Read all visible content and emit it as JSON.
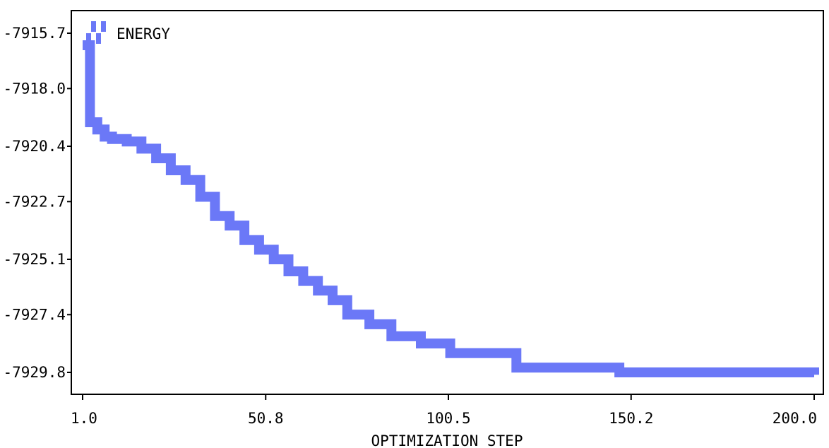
{
  "chart_data": {
    "type": "line",
    "title": "",
    "xlabel": "OPTIMIZATION STEP",
    "ylabel": "",
    "xlim": [
      1.0,
      200.0
    ],
    "ylim": [
      -7929.8,
      -7915.7
    ],
    "x_ticks": [
      "1.0",
      "50.8",
      "100.5",
      "150.2",
      "200.0"
    ],
    "x_tick_values": [
      1.0,
      50.8,
      100.5,
      150.2,
      200.0
    ],
    "y_ticks": [
      "-7915.7",
      "-7918.0",
      "-7920.4",
      "-7922.7",
      "-7925.1",
      "-7927.4",
      "-7929.8"
    ],
    "y_tick_values": [
      -7915.7,
      -7918.0,
      -7920.4,
      -7922.7,
      -7925.1,
      -7927.4,
      -7929.8
    ],
    "legend": {
      "position": "top-left",
      "entries": [
        "ENERGY"
      ]
    },
    "grid": false,
    "color": "#6b78f7",
    "series": [
      {
        "name": "ENERGY",
        "x": [
          1,
          3,
          5,
          7,
          9,
          11,
          13,
          17,
          21,
          25,
          29,
          33,
          37,
          41,
          45,
          49,
          53,
          57,
          61,
          65,
          69,
          73,
          79,
          85,
          93,
          101,
          119,
          147,
          200
        ],
        "y": [
          -7916.2,
          -7919.4,
          -7919.7,
          -7920.0,
          -7920.1,
          -7920.1,
          -7920.2,
          -7920.5,
          -7920.9,
          -7921.4,
          -7921.8,
          -7922.5,
          -7923.3,
          -7923.7,
          -7924.3,
          -7924.7,
          -7925.1,
          -7925.6,
          -7926.0,
          -7926.4,
          -7926.8,
          -7927.4,
          -7927.8,
          -7928.3,
          -7928.6,
          -7929.0,
          -7929.6,
          -7929.8,
          -7929.9
        ]
      }
    ]
  }
}
